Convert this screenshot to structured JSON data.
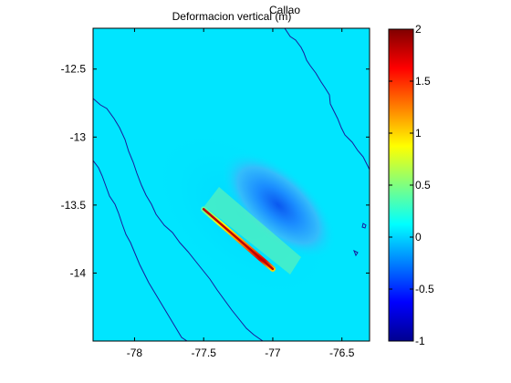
{
  "chart_data": {
    "type": "heatmap",
    "title": "Deformacion vertical (m)",
    "subtitle": "Callao",
    "xlabel": "",
    "ylabel": "",
    "xlim": [
      -78.3,
      -76.3
    ],
    "ylim": [
      -14.5,
      -12.2
    ],
    "x_ticks": [
      "-78",
      "-77.5",
      "-77",
      "-76.5"
    ],
    "x_tick_values": [
      -78,
      -77.5,
      -77,
      -76.5
    ],
    "y_ticks": [
      "-12.5",
      "-13",
      "-13.5",
      "-14"
    ],
    "y_tick_values": [
      -12.5,
      -13,
      -13.5,
      -14
    ],
    "colorbar": {
      "ticks": [
        "2",
        "1.5",
        "1",
        "0.5",
        "0",
        "-0.5",
        "-1"
      ],
      "tick_values": [
        2,
        1.5,
        1,
        0.5,
        0,
        -0.5,
        -1
      ],
      "range": [
        -1,
        2
      ],
      "colormap": "jet"
    },
    "grid": false,
    "features": {
      "uplift_max_m": 2,
      "subsidence_min_m": -0.7,
      "uplift_line": {
        "from": [
          -77.5,
          -13.53
        ],
        "to": [
          -77.0,
          -13.97
        ]
      },
      "subsidence_center": [
        -77.0,
        -13.45
      ],
      "coastline_color": "#00008b",
      "trench_color": "#00008b"
    }
  }
}
